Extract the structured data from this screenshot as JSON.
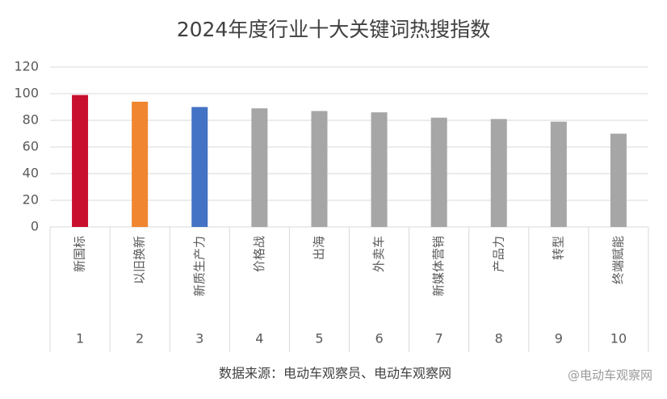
{
  "chart_data": {
    "type": "bar",
    "title": "2024年度行业十大关键词热搜指数",
    "categories": [
      "新国标",
      "以旧换新",
      "新质生产力",
      "价格战",
      "出海",
      "外卖车",
      "新媒体营销",
      "产品力",
      "转型",
      "终端赋能"
    ],
    "ranks": [
      1,
      2,
      3,
      4,
      5,
      6,
      7,
      8,
      9,
      10
    ],
    "values": [
      99,
      94,
      90,
      89,
      87,
      86,
      82,
      81,
      79,
      70
    ],
    "colors": [
      "#c8102e",
      "#f0862f",
      "#4472c4",
      "#a6a6a6",
      "#a6a6a6",
      "#a6a6a6",
      "#a6a6a6",
      "#a6a6a6",
      "#a6a6a6",
      "#a6a6a6"
    ],
    "ylim": [
      0,
      120
    ],
    "yticks": [
      0,
      20,
      40,
      60,
      80,
      100,
      120
    ],
    "grid": true,
    "source": "数据来源：电动车观察员、电动车观察网",
    "watermark": "@电动车观察网"
  }
}
